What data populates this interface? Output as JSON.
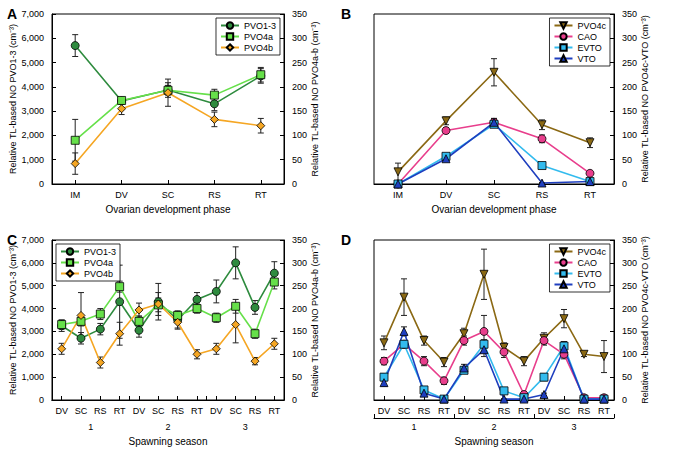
{
  "chart_data": [
    {
      "type": "line",
      "title": "A",
      "categories": [
        "IM",
        "DV",
        "SC",
        "RS",
        "RT"
      ],
      "x_label": "Ovarian development phase",
      "ylim": [
        0,
        7000
      ],
      "yticks": [
        0,
        1000,
        2000,
        3000,
        4000,
        5000,
        6000,
        7000
      ],
      "y_label": "Relative TL-based NO PVO1-3 (cm⁻³)",
      "y2lim": [
        0,
        350
      ],
      "y2ticks": [
        0,
        50,
        100,
        150,
        200,
        250,
        300,
        350
      ],
      "y2_label": "Relative TL-based NO PVO4a-b (cm⁻³)",
      "legend": "upper right",
      "grid": false,
      "series": [
        {
          "name": "PVO1-3",
          "color": "#2e8b3e",
          "marker": "circle",
          "values": [
            5700,
            3420,
            3870,
            3300,
            4450
          ],
          "errors": [
            450,
            120,
            300,
            280,
            300
          ]
        },
        {
          "name": "PVO4a",
          "color": "#66e04a",
          "marker": "square",
          "axis": "y2",
          "values": [
            90,
            172,
            193,
            183,
            225
          ],
          "errors": [
            43,
            6,
            10,
            12,
            15
          ]
        },
        {
          "name": "PVO4b",
          "color": "#f5a623",
          "marker": "diamond",
          "axis": "y2",
          "values": [
            42,
            155,
            188,
            133,
            120
          ],
          "errors": [
            22,
            12,
            28,
            15,
            15
          ]
        }
      ]
    },
    {
      "type": "line",
      "title": "B",
      "categories": [
        "IM",
        "DV",
        "SC",
        "RS",
        "RT"
      ],
      "x_label": "Ovarian development phase",
      "y2lim": [
        0,
        350
      ],
      "y2ticks": [
        0,
        50,
        100,
        150,
        200,
        250,
        300,
        350
      ],
      "y2_label": "Relative TL-based NO PVO4c-VTO (cm⁻³)",
      "legend": "upper right",
      "grid": false,
      "series": [
        {
          "name": "PVO4c",
          "color": "#8b6914",
          "marker": "triangle-down",
          "axis": "y2",
          "values": [
            25,
            130,
            230,
            122,
            85
          ],
          "errors": [
            18,
            8,
            28,
            10,
            10
          ]
        },
        {
          "name": "CAO",
          "color": "#e83e8c",
          "marker": "circle",
          "axis": "y2",
          "values": [
            0,
            110,
            127,
            93,
            22
          ],
          "errors": [
            2,
            6,
            8,
            8,
            4
          ]
        },
        {
          "name": "EVTO",
          "color": "#33bbee",
          "marker": "square",
          "axis": "y2",
          "values": [
            0,
            57,
            123,
            38,
            5
          ],
          "errors": [
            1,
            5,
            6,
            4,
            2
          ]
        },
        {
          "name": "VTO",
          "color": "#1f3fbf",
          "marker": "triangle",
          "axis": "y2",
          "values": [
            0,
            52,
            127,
            2,
            5
          ],
          "errors": [
            1,
            5,
            8,
            1,
            1
          ]
        }
      ]
    },
    {
      "type": "line",
      "title": "C",
      "categories": [
        "DV",
        "SC",
        "RS",
        "RT",
        "DV",
        "SC",
        "RS",
        "RT",
        "DV",
        "SC",
        "RS",
        "RT"
      ],
      "x_groups": [
        "1",
        "2",
        "3"
      ],
      "x_label": "Spawning season",
      "ylim": [
        0,
        7000
      ],
      "yticks": [
        0,
        1000,
        2000,
        3000,
        4000,
        5000,
        6000,
        7000
      ],
      "y_label": "Relative TL-based NO PVO1-3 (cm⁻³)",
      "y2lim": [
        0,
        350
      ],
      "y2ticks": [
        0,
        50,
        100,
        150,
        200,
        250,
        300,
        350
      ],
      "y2_label": "Relative TL-based NO PVO4a-b (cm⁻³)",
      "legend": "upper left",
      "grid": false,
      "series": [
        {
          "name": "PVO1-3",
          "color": "#2e8b3e",
          "marker": "circle",
          "values": [
            3250,
            2700,
            3100,
            4300,
            3050,
            4300,
            3500,
            4400,
            4750,
            6000,
            4050,
            5550
          ],
          "errors": [
            250,
            250,
            250,
            1600,
            300,
            800,
            350,
            300,
            500,
            700,
            300,
            500
          ]
        },
        {
          "name": "PVO4a",
          "color": "#66e04a",
          "marker": "square",
          "axis": "y2",
          "values": [
            165,
            172,
            188,
            248,
            172,
            208,
            185,
            200,
            180,
            205,
            145,
            258
          ],
          "errors": [
            10,
            10,
            12,
            12,
            12,
            15,
            10,
            10,
            10,
            15,
            10,
            15
          ]
        },
        {
          "name": "PVO4b",
          "color": "#f5a623",
          "marker": "diamond",
          "axis": "y2",
          "values": [
            112,
            185,
            82,
            145,
            197,
            210,
            170,
            100,
            112,
            165,
            85,
            123
          ],
          "errors": [
            12,
            50,
            12,
            25,
            15,
            25,
            15,
            10,
            12,
            40,
            8,
            12
          ]
        }
      ]
    },
    {
      "type": "line",
      "title": "D",
      "categories": [
        "DV",
        "SC",
        "RS",
        "RT",
        "DV",
        "SC",
        "RS",
        "RT",
        "DV",
        "SC",
        "RS",
        "RT"
      ],
      "x_groups": [
        "1",
        "2",
        "3"
      ],
      "x_label": "Spawning season",
      "y2lim": [
        0,
        350
      ],
      "y2ticks": [
        0,
        50,
        100,
        150,
        200,
        250,
        300,
        350
      ],
      "y2_label": "Relative TL-based NO PVO4c-VTO (cm⁻³)",
      "legend": "upper right",
      "grid": false,
      "series": [
        {
          "name": "PVO4c",
          "color": "#8b6914",
          "marker": "triangle-down",
          "axis": "y2",
          "values": [
            125,
            225,
            130,
            83,
            145,
            275,
            115,
            85,
            135,
            178,
            100,
            95
          ],
          "errors": [
            15,
            40,
            10,
            10,
            12,
            55,
            10,
            10,
            12,
            20,
            5,
            35
          ]
        },
        {
          "name": "CAO",
          "color": "#e83e8c",
          "marker": "circle",
          "axis": "y2",
          "values": [
            85,
            122,
            85,
            42,
            130,
            150,
            105,
            12,
            130,
            100,
            5,
            5
          ],
          "errors": [
            8,
            8,
            10,
            8,
            10,
            35,
            12,
            3,
            10,
            10,
            2,
            2
          ]
        },
        {
          "name": "EVTO",
          "color": "#33bbee",
          "marker": "square",
          "axis": "y2",
          "values": [
            50,
            122,
            22,
            2,
            65,
            122,
            20,
            5,
            50,
            118,
            2,
            2
          ],
          "errors": [
            8,
            8,
            5,
            1,
            6,
            10,
            4,
            1,
            8,
            10,
            1,
            1
          ]
        },
        {
          "name": "VTO",
          "color": "#1f3fbf",
          "marker": "triangle",
          "axis": "y2",
          "values": [
            38,
            150,
            15,
            2,
            70,
            110,
            2,
            2,
            12,
            112,
            2,
            2
          ],
          "errors": [
            8,
            10,
            3,
            1,
            8,
            15,
            1,
            1,
            3,
            8,
            1,
            1
          ]
        }
      ]
    }
  ]
}
